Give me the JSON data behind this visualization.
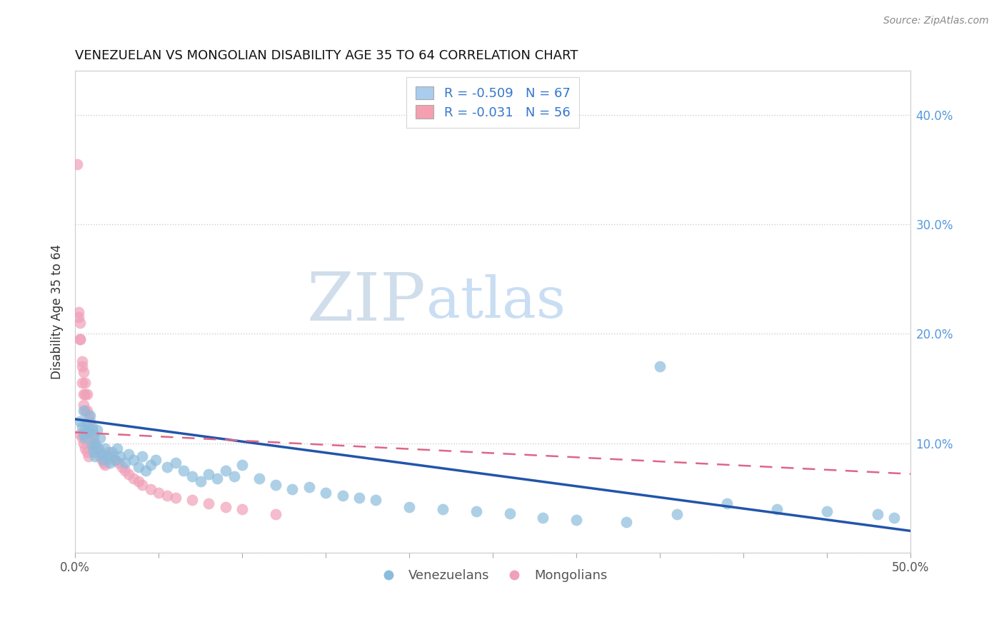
{
  "title": "VENEZUELAN VS MONGOLIAN DISABILITY AGE 35 TO 64 CORRELATION CHART",
  "source": "Source: ZipAtlas.com",
  "ylabel": "Disability Age 35 to 64",
  "xlim": [
    0.0,
    0.5
  ],
  "ylim": [
    0.0,
    0.44
  ],
  "xticks": [
    0.0,
    0.05,
    0.1,
    0.15,
    0.2,
    0.25,
    0.3,
    0.35,
    0.4,
    0.45,
    0.5
  ],
  "yticks": [
    0.0,
    0.1,
    0.2,
    0.3,
    0.4
  ],
  "venezuelan_R": -0.509,
  "venezuelan_N": 67,
  "mongolian_R": -0.031,
  "mongolian_N": 56,
  "blue_color": "#8bbcdc",
  "blue_line_color": "#2255aa",
  "pink_color": "#f0a0b8",
  "pink_line_color": "#dd6688",
  "watermark_zip": "ZIP",
  "watermark_atlas": "atlas",
  "background_color": "#ffffff",
  "legend_color_blue": "#aaccee",
  "legend_color_pink": "#f4a0b0",
  "blue_trend_x0": 0.0,
  "blue_trend_y0": 0.122,
  "blue_trend_x1": 0.5,
  "blue_trend_y1": 0.02,
  "pink_trend_x0": 0.0,
  "pink_trend_y0": 0.11,
  "pink_trend_x1": 0.5,
  "pink_trend_y1": 0.072,
  "venezuelan_x": [
    0.003,
    0.004,
    0.005,
    0.005,
    0.006,
    0.006,
    0.007,
    0.008,
    0.009,
    0.01,
    0.01,
    0.011,
    0.011,
    0.012,
    0.012,
    0.013,
    0.014,
    0.015,
    0.016,
    0.017,
    0.018,
    0.02,
    0.021,
    0.022,
    0.024,
    0.025,
    0.027,
    0.03,
    0.032,
    0.035,
    0.038,
    0.04,
    0.042,
    0.045,
    0.048,
    0.055,
    0.06,
    0.065,
    0.07,
    0.075,
    0.08,
    0.085,
    0.09,
    0.095,
    0.1,
    0.11,
    0.12,
    0.13,
    0.14,
    0.15,
    0.16,
    0.17,
    0.18,
    0.2,
    0.22,
    0.24,
    0.26,
    0.28,
    0.3,
    0.33,
    0.36,
    0.39,
    0.42,
    0.45,
    0.48,
    0.49,
    0.35
  ],
  "venezuelan_y": [
    0.12,
    0.115,
    0.13,
    0.108,
    0.112,
    0.105,
    0.118,
    0.11,
    0.125,
    0.115,
    0.098,
    0.108,
    0.092,
    0.1,
    0.088,
    0.112,
    0.095,
    0.105,
    0.09,
    0.085,
    0.095,
    0.088,
    0.082,
    0.092,
    0.085,
    0.095,
    0.088,
    0.082,
    0.09,
    0.085,
    0.078,
    0.088,
    0.075,
    0.08,
    0.085,
    0.078,
    0.082,
    0.075,
    0.07,
    0.065,
    0.072,
    0.068,
    0.075,
    0.07,
    0.08,
    0.068,
    0.062,
    0.058,
    0.06,
    0.055,
    0.052,
    0.05,
    0.048,
    0.042,
    0.04,
    0.038,
    0.036,
    0.032,
    0.03,
    0.028,
    0.035,
    0.045,
    0.04,
    0.038,
    0.035,
    0.032,
    0.17
  ],
  "mongolian_x": [
    0.001,
    0.002,
    0.002,
    0.003,
    0.003,
    0.003,
    0.004,
    0.004,
    0.004,
    0.005,
    0.005,
    0.005,
    0.006,
    0.006,
    0.006,
    0.007,
    0.007,
    0.008,
    0.008,
    0.009,
    0.009,
    0.01,
    0.01,
    0.011,
    0.012,
    0.013,
    0.014,
    0.015,
    0.016,
    0.017,
    0.018,
    0.02,
    0.022,
    0.024,
    0.026,
    0.028,
    0.03,
    0.032,
    0.035,
    0.038,
    0.04,
    0.045,
    0.05,
    0.055,
    0.06,
    0.07,
    0.08,
    0.09,
    0.1,
    0.12,
    0.003,
    0.004,
    0.005,
    0.006,
    0.007,
    0.008
  ],
  "mongolian_y": [
    0.355,
    0.22,
    0.215,
    0.21,
    0.195,
    0.195,
    0.17,
    0.175,
    0.155,
    0.165,
    0.145,
    0.135,
    0.155,
    0.145,
    0.13,
    0.145,
    0.13,
    0.125,
    0.115,
    0.12,
    0.108,
    0.112,
    0.1,
    0.105,
    0.098,
    0.095,
    0.092,
    0.088,
    0.085,
    0.082,
    0.08,
    0.092,
    0.088,
    0.085,
    0.082,
    0.078,
    0.075,
    0.072,
    0.068,
    0.065,
    0.062,
    0.058,
    0.055,
    0.052,
    0.05,
    0.048,
    0.045,
    0.042,
    0.04,
    0.035,
    0.108,
    0.105,
    0.1,
    0.095,
    0.092,
    0.088
  ]
}
